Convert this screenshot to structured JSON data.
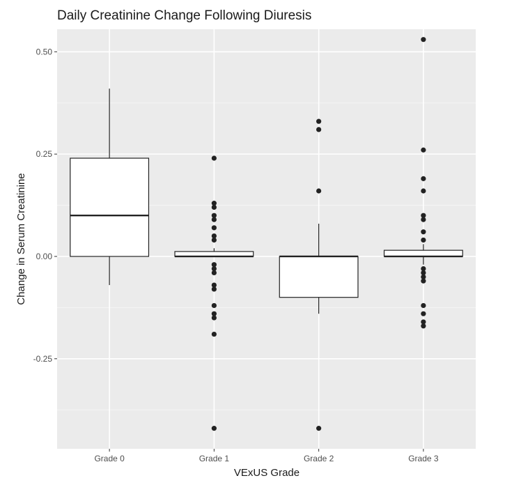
{
  "chart_data": {
    "type": "boxplot",
    "title": "Daily Creatinine Change Following Diuresis",
    "xlabel": "VExUS Grade",
    "ylabel": "Change in Serum Creatinine",
    "categories": [
      "Grade 0",
      "Grade 1",
      "Grade 2",
      "Grade 3"
    ],
    "ylim": [
      -0.47,
      0.555
    ],
    "yticks": [
      -0.25,
      0,
      0.25,
      0.5
    ],
    "ytick_labels": [
      "-0.25",
      "0.00",
      "0.25",
      "0.50"
    ],
    "grid": true,
    "legend": "none",
    "boxes": [
      {
        "category": "Grade 0",
        "whisker_low": -0.07,
        "q1": 0.0,
        "median": 0.1,
        "q3": 0.24,
        "whisker_high": 0.41,
        "outliers": []
      },
      {
        "category": "Grade 1",
        "whisker_low": 0.0,
        "q1": 0.0,
        "median": 0.0,
        "q3": 0.012,
        "whisker_high": 0.02,
        "outliers": [
          0.24,
          0.13,
          0.12,
          0.1,
          0.09,
          0.07,
          0.05,
          0.04,
          -0.02,
          -0.03,
          -0.04,
          -0.07,
          -0.08,
          -0.12,
          -0.14,
          -0.15,
          -0.19,
          -0.42
        ]
      },
      {
        "category": "Grade 2",
        "whisker_low": -0.14,
        "q1": -0.1,
        "median": 0.0,
        "q3": 0.0,
        "whisker_high": 0.08,
        "outliers": [
          0.33,
          0.31,
          0.16,
          -0.42
        ]
      },
      {
        "category": "Grade 3",
        "whisker_low": -0.02,
        "q1": 0.0,
        "median": 0.0,
        "q3": 0.015,
        "whisker_high": 0.03,
        "outliers": [
          0.53,
          0.26,
          0.19,
          0.16,
          0.1,
          0.09,
          0.06,
          0.04,
          -0.03,
          -0.04,
          -0.05,
          -0.06,
          -0.12,
          -0.14,
          -0.16,
          -0.17
        ]
      }
    ],
    "colors": {
      "panel_background": "#ebebeb",
      "grid_major": "#ffffff",
      "grid_minor": "#f5f5f5",
      "box_fill": "#ffffff",
      "box_stroke": "#222222",
      "point": "#222222"
    }
  }
}
